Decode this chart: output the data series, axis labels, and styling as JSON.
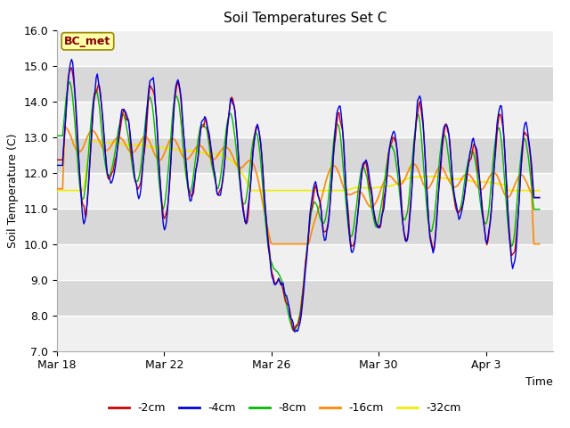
{
  "title": "Soil Temperatures Set C",
  "xlabel": "Time",
  "ylabel": "Soil Temperature (C)",
  "ylim": [
    7.0,
    16.0
  ],
  "yticks": [
    7.0,
    8.0,
    9.0,
    10.0,
    11.0,
    12.0,
    13.0,
    14.0,
    15.0,
    16.0
  ],
  "xtick_labels": [
    "Mar 18",
    "Mar 22",
    "Mar 26",
    "Mar 30",
    "Apr 3"
  ],
  "xtick_pos": [
    0,
    4,
    8,
    12,
    16
  ],
  "xlim": [
    0,
    18.5
  ],
  "colors": {
    "-2cm": "#cc0000",
    "-4cm": "#0000dd",
    "-8cm": "#00bb00",
    "-16cm": "#ff8800",
    "-32cm": "#eeee00"
  },
  "legend_label": "BC_met",
  "legend_bg": "#ffffaa",
  "legend_border": "#998800",
  "legend_text_color": "#880000",
  "plot_bg_light": "#f0f0f0",
  "plot_bg_dark": "#d8d8d8",
  "figsize": [
    6.4,
    4.8
  ],
  "dpi": 100
}
